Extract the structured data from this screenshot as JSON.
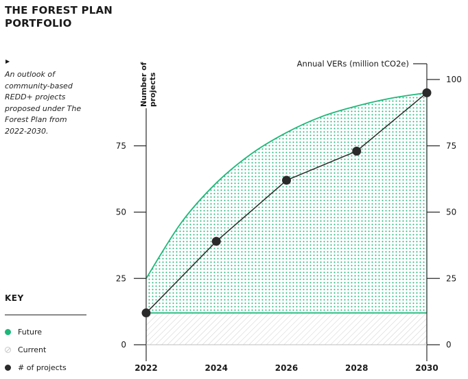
{
  "header": {
    "title_line1": "THE FOREST PLAN",
    "title_line2": "PORTFOLIO",
    "description": "An outlook of community-based REDD+ projects proposed under The Forest Plan from 2022-2030."
  },
  "key": {
    "title": "KEY",
    "items": [
      {
        "label": "Future",
        "color": "#1db87a"
      },
      {
        "label": "Current",
        "color": "#c8c8c8"
      },
      {
        "label": "# of projects",
        "color": "#2a2a2a"
      }
    ]
  },
  "chart_data": {
    "type": "line",
    "left_axis_label_line1": "Number of",
    "left_axis_label_line2": "projects",
    "right_axis_label": "Annual VERs (million tCO2e)",
    "x": [
      2022,
      2024,
      2026,
      2028,
      2030
    ],
    "x_ticks": [
      "2022",
      "2024",
      "2026",
      "2028",
      "2030"
    ],
    "left_ticks": [
      0,
      25,
      50,
      75
    ],
    "right_ticks": [
      0,
      25,
      50,
      75,
      100
    ],
    "ylim": [
      0,
      100
    ],
    "series": [
      {
        "name": "# of projects",
        "values": [
          12,
          39,
          62,
          73,
          95
        ],
        "color": "#2a2a2a"
      }
    ],
    "current_level": 12,
    "future_curve": {
      "x": [
        2022,
        2023,
        2024,
        2025,
        2026,
        2027,
        2028,
        2029,
        2030
      ],
      "values": [
        25,
        46,
        61,
        72,
        80,
        86,
        90,
        93,
        95
      ]
    },
    "colors": {
      "future": "#1db87a",
      "current": "#c8c8c8",
      "line": "#2a2a2a"
    }
  }
}
